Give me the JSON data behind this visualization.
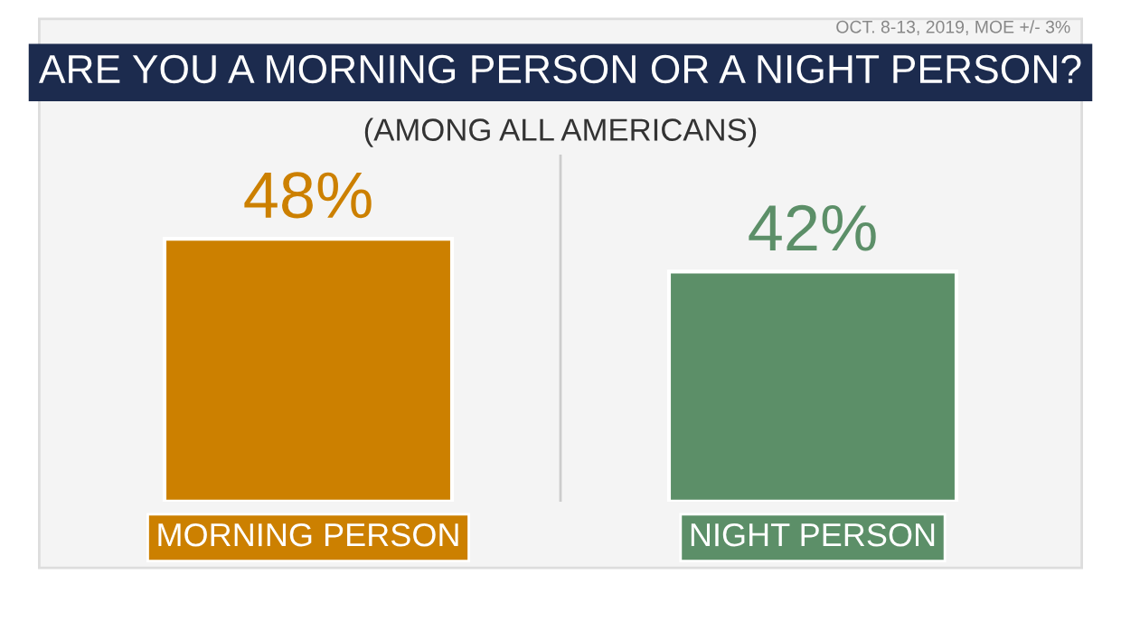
{
  "chart_data": {
    "type": "bar",
    "title": "ARE YOU A MORNING PERSON OR A NIGHT PERSON?",
    "subtitle": "(AMONG ALL AMERICANS)",
    "annotations": [
      "OCT. 8-13, 2019, MOE +/- 3%"
    ],
    "categories": [
      "MORNING PERSON",
      "NIGHT PERSON"
    ],
    "values": [
      48,
      42
    ],
    "colors": [
      "#cc8000",
      "#5c8f68"
    ],
    "value_labels": [
      "48%",
      "42%"
    ]
  }
}
